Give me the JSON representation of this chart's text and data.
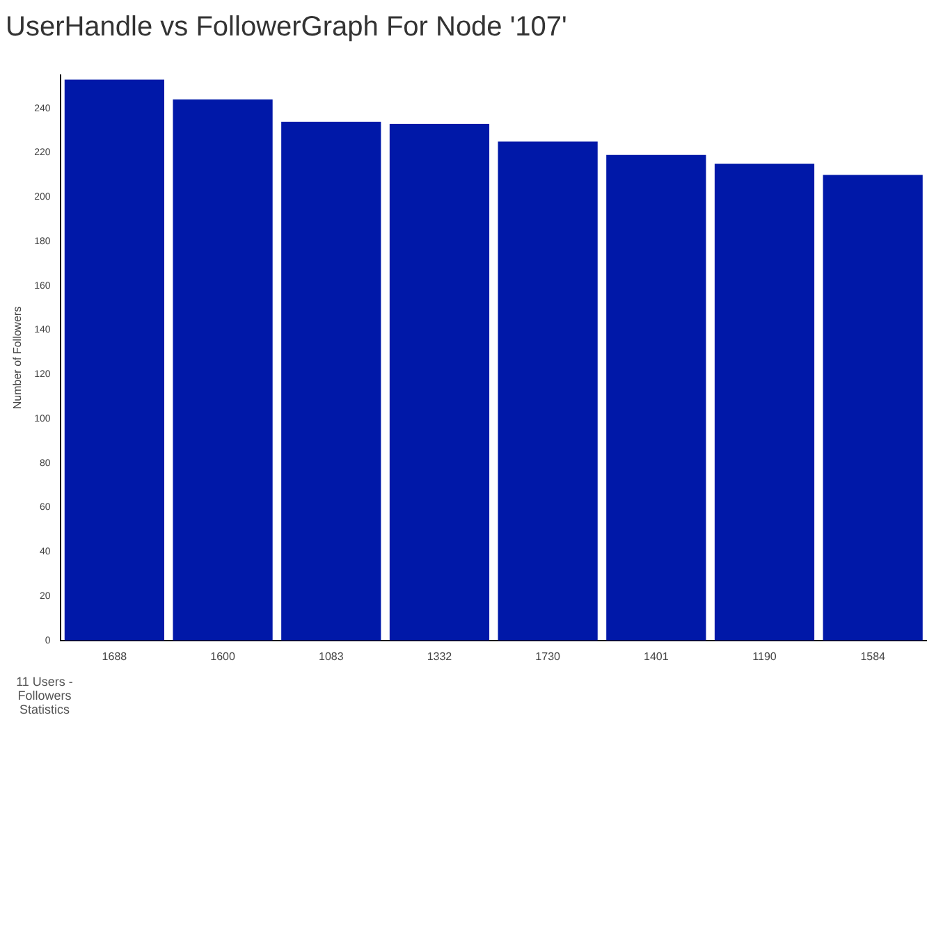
{
  "chart_data": {
    "type": "bar",
    "title": "UserHandle vs FollowerGraph For Node '107'",
    "ylabel": "Number of Followers",
    "categories": [
      "1688",
      "1600",
      "1083",
      "1332",
      "1730",
      "1401",
      "1190",
      "1584"
    ],
    "values": [
      253,
      244,
      234,
      233,
      225,
      219,
      215,
      210
    ],
    "color": "#0018a8",
    "ylim": [
      0,
      255
    ],
    "yticks": [
      0,
      20,
      40,
      60,
      80,
      100,
      120,
      140,
      160,
      180,
      200,
      220,
      240
    ],
    "grid": false,
    "legend": false,
    "annotations": [
      "11 Users - Followers Statistics"
    ]
  }
}
